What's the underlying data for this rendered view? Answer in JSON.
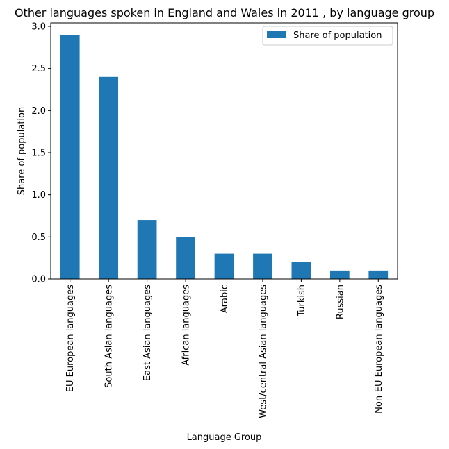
{
  "chart_data": {
    "type": "bar",
    "title": "Other languages spoken in England and Wales in 2011 , by language group",
    "xlabel": "Language Group",
    "ylabel": "Share of population",
    "categories": [
      "EU European languages",
      "South Asian languages",
      "East Asian languages",
      "African languages",
      "Arabic",
      "West/central Asian languages",
      "Turkish",
      "Russian",
      "Non-EU European languages"
    ],
    "series": [
      {
        "name": "Share of population",
        "values": [
          2.9,
          2.4,
          0.7,
          0.5,
          0.3,
          0.3,
          0.2,
          0.1,
          0.1
        ]
      }
    ],
    "ylim": [
      0,
      3.0
    ],
    "yticks": [
      "0.0",
      "0.5",
      "1.0",
      "1.5",
      "2.0",
      "2.5",
      "3.0"
    ],
    "grid": false,
    "legend_position": "top-right",
    "colors": {
      "bar": "#1f77b4"
    }
  }
}
